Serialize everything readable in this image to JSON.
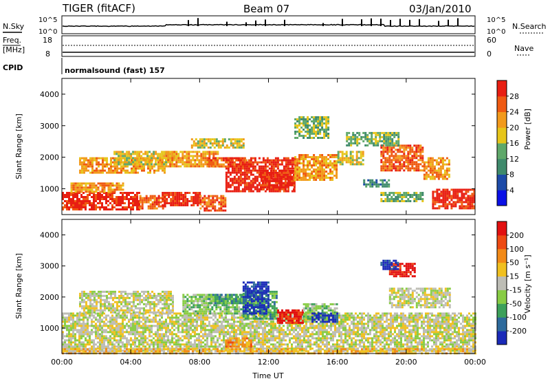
{
  "header": {
    "title": "TIGER (fitACF)",
    "beam": "Beam 07",
    "date": "03/Jan/2010"
  },
  "strip": {
    "nsky_label": "N.Sky",
    "nsky_ticks": [
      "10^5",
      "10^0"
    ],
    "nsearch_label": "N.Search",
    "nsearch_ticks": [
      "10^5",
      "10^0"
    ],
    "freq_label": "Freq.",
    "freq_unit": "[MHz]",
    "freq_ticks": [
      "18",
      "8"
    ],
    "nave_label": "Nave",
    "nave_ticks": [
      "60",
      "0"
    ],
    "cpid_label": "CPID",
    "cpid_text": "normalsound (fast) 157"
  },
  "chart_data": [
    {
      "type": "heatmap",
      "panel": "power",
      "ylabel": "Slant Range [km]",
      "xlabel": "",
      "ylim": [
        180,
        4500
      ],
      "yticks": [
        1000,
        2000,
        3000,
        4000
      ],
      "xticks": [
        "00:00",
        "04:00",
        "08:00",
        "12:00",
        "16:00",
        "20:00",
        "00:00"
      ],
      "colorbar": {
        "label": "Power [dB]",
        "ticks": [
          "4",
          "8",
          "12",
          "16",
          "20",
          "24",
          "28"
        ],
        "colors": [
          "#0a10e6",
          "#1d4ba8",
          "#3f8a6c",
          "#5fa86a",
          "#e7c51a",
          "#f29a1c",
          "#ef5a12",
          "#e81e12"
        ]
      },
      "regions": [
        {
          "t": [
            0.0,
            4.5
          ],
          "r": [
            350,
            900
          ],
          "level": 7
        },
        {
          "t": [
            4.5,
            6.0
          ],
          "r": [
            400,
            800
          ],
          "level": 6
        },
        {
          "t": [
            5.8,
            8.0
          ],
          "r": [
            500,
            900
          ],
          "level": 7
        },
        {
          "t": [
            8.0,
            9.5
          ],
          "r": [
            300,
            800
          ],
          "level": 6
        },
        {
          "t": [
            0.5,
            3.5
          ],
          "r": [
            900,
            1200
          ],
          "level": 5
        },
        {
          "t": [
            1.0,
            6.0
          ],
          "r": [
            1500,
            2000
          ],
          "level": 5
        },
        {
          "t": [
            3.0,
            6.5
          ],
          "r": [
            1800,
            2200
          ],
          "level": 4
        },
        {
          "t": [
            6.0,
            9.0
          ],
          "r": [
            1700,
            2200
          ],
          "level": 5
        },
        {
          "t": [
            8.5,
            11.0
          ],
          "r": [
            1700,
            2000
          ],
          "level": 6
        },
        {
          "t": [
            9.5,
            13.5
          ],
          "r": [
            900,
            2000
          ],
          "level": 7
        },
        {
          "t": [
            11.5,
            13.5
          ],
          "r": [
            1000,
            1600
          ],
          "level": 7
        },
        {
          "t": [
            13.5,
            16.0
          ],
          "r": [
            1300,
            2100
          ],
          "level": 5
        },
        {
          "t": [
            16.0,
            17.5
          ],
          "r": [
            1800,
            2200
          ],
          "level": 4
        },
        {
          "t": [
            18.5,
            21.0
          ],
          "r": [
            1600,
            2400
          ],
          "level": 6
        },
        {
          "t": [
            21.0,
            22.5
          ],
          "r": [
            1300,
            2000
          ],
          "level": 5
        },
        {
          "t": [
            21.5,
            24.0
          ],
          "r": [
            400,
            1000
          ],
          "level": 7
        },
        {
          "t": [
            18.5,
            21.0
          ],
          "r": [
            600,
            900
          ],
          "level": 3
        },
        {
          "t": [
            13.5,
            15.5
          ],
          "r": [
            2600,
            3300
          ],
          "level": 3
        },
        {
          "t": [
            7.5,
            10.5
          ],
          "r": [
            2300,
            2600
          ],
          "level": 4
        },
        {
          "t": [
            16.5,
            19.5
          ],
          "r": [
            2400,
            2800
          ],
          "level": 3
        },
        {
          "t": [
            17.5,
            19.0
          ],
          "r": [
            1100,
            1300
          ],
          "level": 2
        }
      ]
    },
    {
      "type": "heatmap",
      "panel": "velocity",
      "ylabel": "Slant Range [km]",
      "xlabel": "Time UT",
      "ylim": [
        180,
        4500
      ],
      "yticks": [
        1000,
        2000,
        3000,
        4000
      ],
      "xticks": [
        "00:00",
        "04:00",
        "08:00",
        "12:00",
        "16:00",
        "20:00",
        "00:00"
      ],
      "colorbar": {
        "label": "Velocity [m s⁻¹]",
        "ticks": [
          "200",
          "100",
          "50",
          "15",
          "-15",
          "-50",
          "-100",
          "-200"
        ],
        "colors": [
          "#1a2ab8",
          "#2d6a9c",
          "#3ca05a",
          "#88cc44",
          "#bdbdb5",
          "#f0c020",
          "#f28a18",
          "#ee4a12",
          "#e21010"
        ]
      },
      "regions": [
        {
          "t": [
            0.0,
            24.0
          ],
          "r": [
            300,
            1500
          ],
          "level": 4
        },
        {
          "t": [
            1.0,
            6.5
          ],
          "r": [
            1500,
            2200
          ],
          "level": 4
        },
        {
          "t": [
            7.0,
            10.5
          ],
          "r": [
            1500,
            2100
          ],
          "level": 3
        },
        {
          "t": [
            8.5,
            11.0
          ],
          "r": [
            1800,
            2100
          ],
          "level": 2
        },
        {
          "t": [
            10.5,
            12.5
          ],
          "r": [
            1300,
            2200
          ],
          "level": 2
        },
        {
          "t": [
            10.5,
            12.0
          ],
          "r": [
            1500,
            2500
          ],
          "level": 0
        },
        {
          "t": [
            12.5,
            14.0
          ],
          "r": [
            1200,
            1600
          ],
          "level": 8
        },
        {
          "t": [
            14.0,
            16.0
          ],
          "r": [
            1300,
            1800
          ],
          "level": 3
        },
        {
          "t": [
            14.5,
            16.0
          ],
          "r": [
            1200,
            1500
          ],
          "level": 0
        },
        {
          "t": [
            19.0,
            20.5
          ],
          "r": [
            2700,
            3100
          ],
          "level": 8
        },
        {
          "t": [
            18.5,
            19.5
          ],
          "r": [
            2900,
            3200
          ],
          "level": 0
        },
        {
          "t": [
            19.0,
            22.5
          ],
          "r": [
            1700,
            2300
          ],
          "level": 4
        },
        {
          "t": [
            9.5,
            11.0
          ],
          "r": [
            400,
            700
          ],
          "level": 6
        },
        {
          "t": [
            0.0,
            24.0
          ],
          "r": [
            180,
            350
          ],
          "level": 5
        }
      ]
    }
  ]
}
